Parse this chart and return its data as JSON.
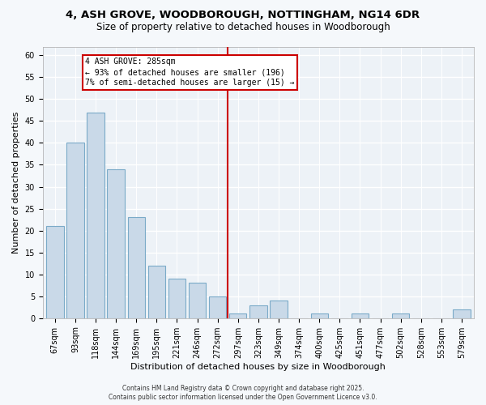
{
  "title": "4, ASH GROVE, WOODBOROUGH, NOTTINGHAM, NG14 6DR",
  "subtitle": "Size of property relative to detached houses in Woodborough",
  "xlabel": "Distribution of detached houses by size in Woodborough",
  "ylabel": "Number of detached properties",
  "bar_labels": [
    "67sqm",
    "93sqm",
    "118sqm",
    "144sqm",
    "169sqm",
    "195sqm",
    "221sqm",
    "246sqm",
    "272sqm",
    "297sqm",
    "323sqm",
    "349sqm",
    "374sqm",
    "400sqm",
    "425sqm",
    "451sqm",
    "477sqm",
    "502sqm",
    "528sqm",
    "553sqm",
    "579sqm"
  ],
  "bar_values": [
    21,
    40,
    47,
    34,
    23,
    12,
    9,
    8,
    5,
    1,
    3,
    4,
    0,
    1,
    0,
    1,
    0,
    1,
    0,
    0,
    2
  ],
  "bar_color": "#c9d9e8",
  "bar_edgecolor": "#7aaac8",
  "vline_color": "#cc0000",
  "annotation_title": "4 ASH GROVE: 285sqm",
  "annotation_line1": "← 93% of detached houses are smaller (196)",
  "annotation_line2": "7% of semi-detached houses are larger (15) →",
  "annotation_box_edgecolor": "#cc0000",
  "ylim": [
    0,
    62
  ],
  "yticks": [
    0,
    5,
    10,
    15,
    20,
    25,
    30,
    35,
    40,
    45,
    50,
    55,
    60
  ],
  "footer1": "Contains HM Land Registry data © Crown copyright and database right 2025.",
  "footer2": "Contains public sector information licensed under the Open Government Licence v3.0.",
  "bg_color": "#f5f8fb",
  "plot_bg_color": "#edf2f7",
  "grid_color": "#ffffff",
  "title_fontsize": 9.5,
  "subtitle_fontsize": 8.5,
  "tick_fontsize": 7,
  "label_fontsize": 8,
  "footer_fontsize": 5.5
}
